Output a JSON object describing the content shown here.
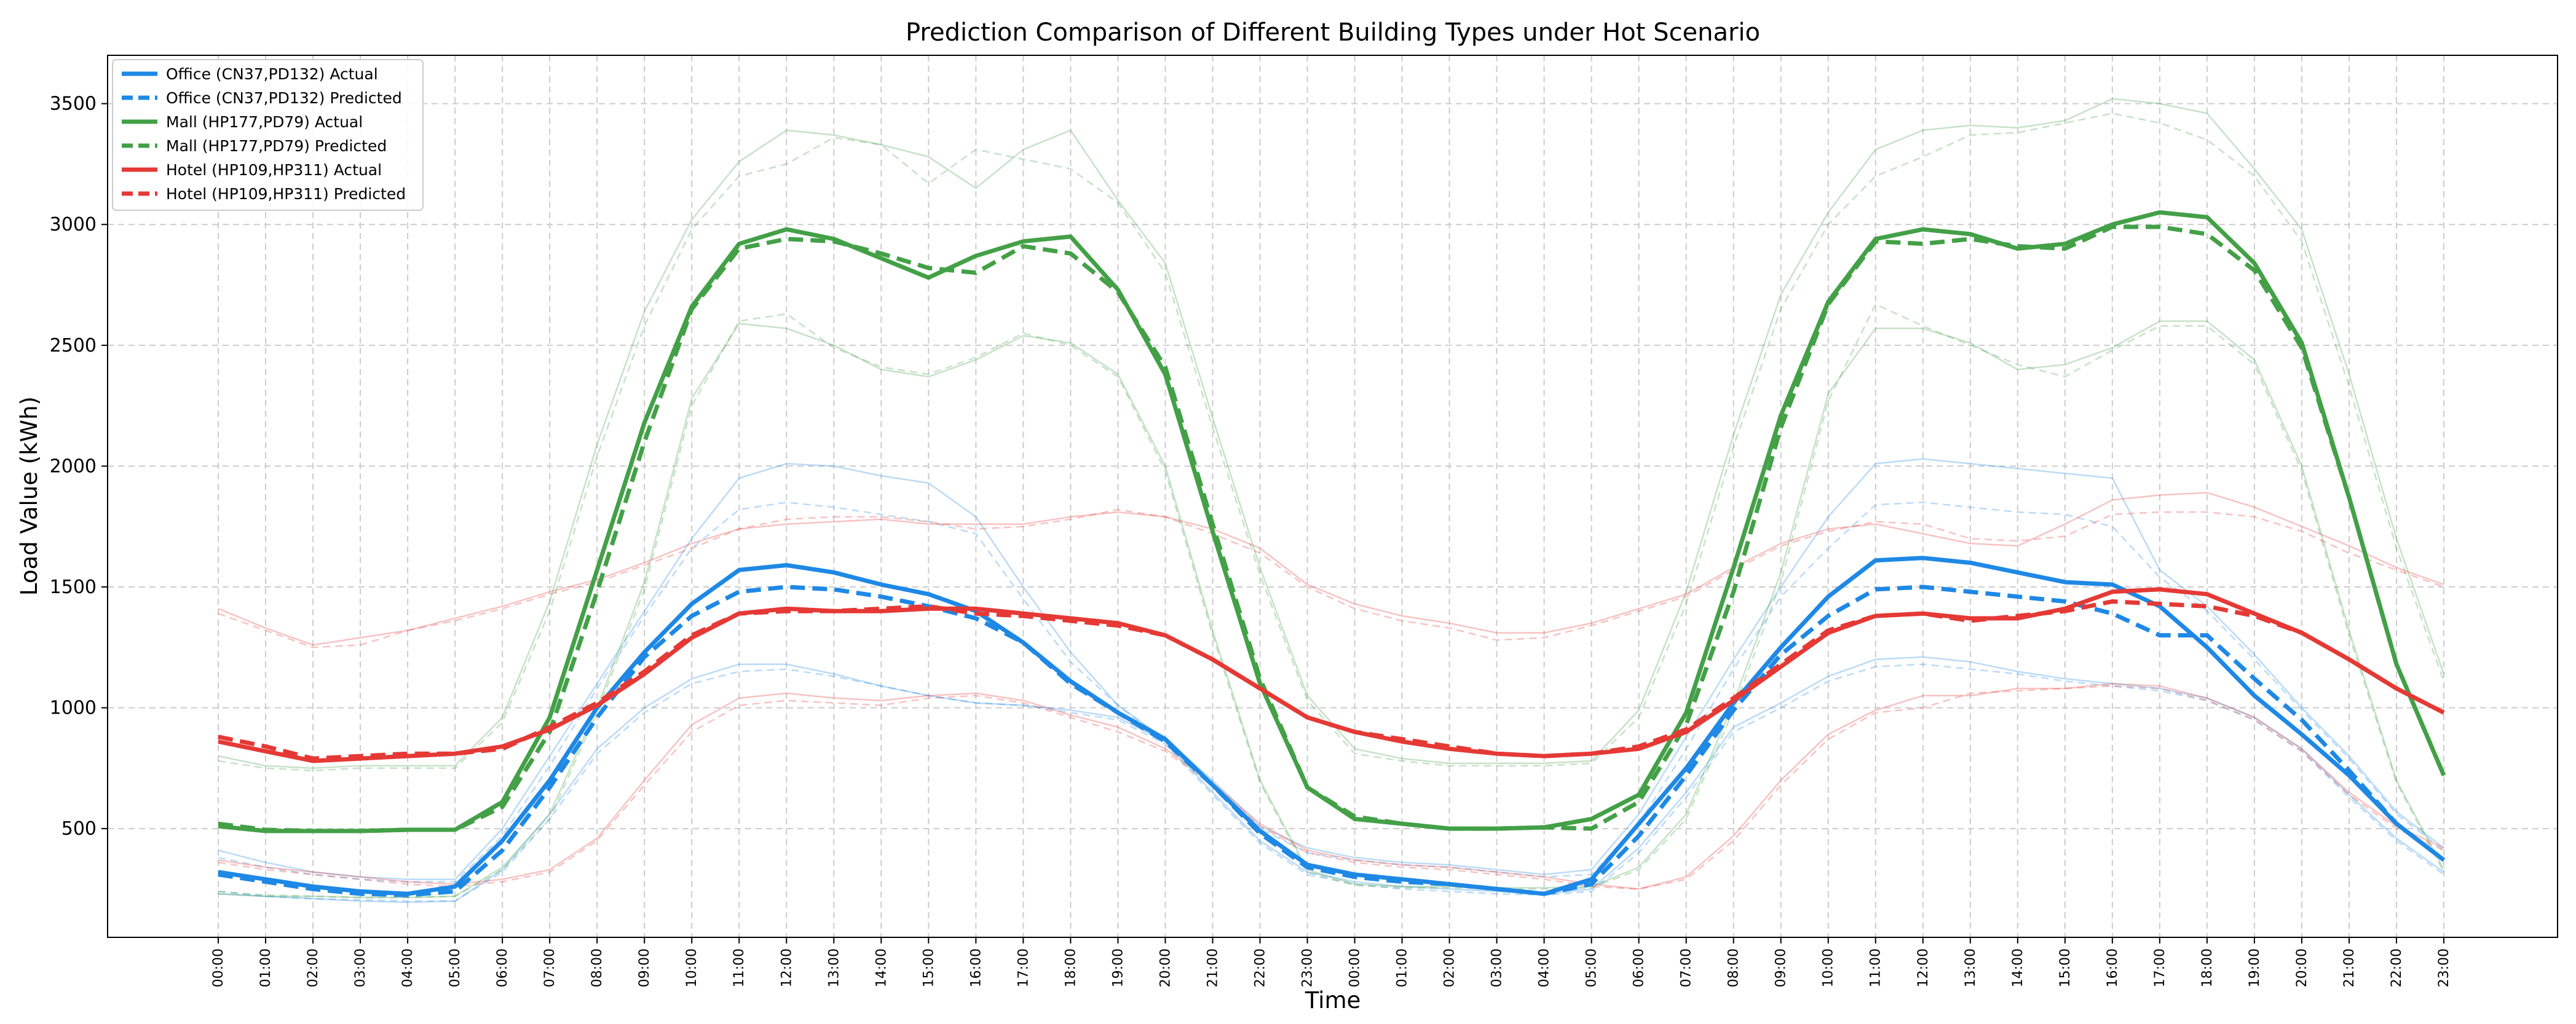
{
  "chart_data": {
    "type": "line",
    "title": "Prediction Comparison of Different Building Types under Hot Scenario",
    "xlabel": "Time",
    "ylabel": "Load Value (kWh)",
    "ylim": [
      50,
      3700
    ],
    "yticks": [
      500,
      1000,
      1500,
      2000,
      2500,
      3000,
      3500
    ],
    "grid": true,
    "legend_position": "top-left",
    "x": [
      "00:00",
      "01:00",
      "02:00",
      "03:00",
      "04:00",
      "05:00",
      "06:00",
      "07:00",
      "08:00",
      "09:00",
      "10:00",
      "11:00",
      "12:00",
      "13:00",
      "14:00",
      "15:00",
      "16:00",
      "17:00",
      "18:00",
      "19:00",
      "20:00",
      "21:00",
      "22:00",
      "23:00",
      "00:00",
      "01:00",
      "02:00",
      "03:00",
      "04:00",
      "05:00",
      "06:00",
      "07:00",
      "08:00",
      "09:00",
      "10:00",
      "11:00",
      "12:00",
      "13:00",
      "14:00",
      "15:00",
      "16:00",
      "17:00",
      "18:00",
      "19:00",
      "20:00",
      "21:00",
      "22:00",
      "23:00"
    ],
    "series": [
      {
        "name": "Office (CN37,PD132) Actual",
        "color": "#1e88e5",
        "style": "solid",
        "values": [
          320,
          290,
          260,
          240,
          230,
          260,
          450,
          700,
          1000,
          1230,
          1430,
          1570,
          1590,
          1560,
          1510,
          1470,
          1400,
          1270,
          1110,
          980,
          870,
          680,
          490,
          350,
          310,
          290,
          270,
          250,
          230,
          290,
          520,
          750,
          1020,
          1250,
          1460,
          1610,
          1620,
          1600,
          1560,
          1520,
          1510,
          1420,
          1250,
          1050,
          890,
          720,
          520,
          370
        ]
      },
      {
        "name": "Office (CN37,PD132) Predicted",
        "color": "#1e88e5",
        "style": "dashed",
        "values": [
          310,
          280,
          250,
          230,
          225,
          240,
          410,
          670,
          960,
          1210,
          1380,
          1480,
          1500,
          1490,
          1460,
          1420,
          1370,
          1270,
          1100,
          980,
          860,
          680,
          480,
          340,
          300,
          280,
          270,
          250,
          230,
          270,
          470,
          720,
          990,
          1220,
          1380,
          1490,
          1500,
          1480,
          1460,
          1440,
          1390,
          1300,
          1300,
          1120,
          950,
          740,
          520,
          370
        ]
      },
      {
        "name": "Mall (HP177,PD79) Actual",
        "color": "#43a047",
        "style": "solid",
        "values": [
          510,
          490,
          490,
          490,
          495,
          495,
          610,
          960,
          1570,
          2180,
          2660,
          2920,
          2980,
          2940,
          2860,
          2780,
          2870,
          2930,
          2950,
          2730,
          2380,
          1730,
          1100,
          670,
          540,
          520,
          500,
          500,
          505,
          540,
          640,
          980,
          1580,
          2210,
          2680,
          2940,
          2980,
          2960,
          2900,
          2920,
          3000,
          3050,
          3030,
          2840,
          2510,
          1870,
          1180,
          720
        ]
      },
      {
        "name": "Mall (HP177,PD79) Predicted",
        "color": "#43a047",
        "style": "dashed",
        "values": [
          520,
          495,
          490,
          490,
          495,
          495,
          590,
          900,
          1480,
          2100,
          2650,
          2900,
          2940,
          2930,
          2880,
          2820,
          2800,
          2910,
          2880,
          2720,
          2410,
          1760,
          1120,
          670,
          550,
          520,
          500,
          500,
          505,
          500,
          610,
          930,
          1480,
          2160,
          2670,
          2930,
          2920,
          2940,
          2910,
          2900,
          2990,
          2990,
          2960,
          2810,
          2490,
          1870,
          1180,
          720
        ]
      },
      {
        "name": "Hotel (HP109,HP311) Actual",
        "color": "#e53935",
        "style": "solid",
        "values": [
          860,
          820,
          780,
          790,
          800,
          810,
          840,
          910,
          1010,
          1140,
          1290,
          1390,
          1410,
          1400,
          1400,
          1410,
          1410,
          1390,
          1370,
          1350,
          1300,
          1200,
          1080,
          960,
          900,
          860,
          830,
          810,
          800,
          810,
          830,
          900,
          1030,
          1170,
          1310,
          1380,
          1390,
          1370,
          1370,
          1410,
          1480,
          1490,
          1470,
          1390,
          1310,
          1200,
          1080,
          980
        ]
      },
      {
        "name": "Hotel (HP109,HP311) Predicted",
        "color": "#e53935",
        "style": "dashed",
        "values": [
          880,
          840,
          790,
          800,
          810,
          810,
          830,
          920,
          1020,
          1150,
          1300,
          1390,
          1400,
          1400,
          1410,
          1420,
          1390,
          1380,
          1360,
          1340,
          1300,
          1200,
          1080,
          960,
          900,
          870,
          840,
          810,
          800,
          810,
          840,
          910,
          1040,
          1180,
          1320,
          1380,
          1390,
          1360,
          1380,
          1400,
          1440,
          1430,
          1420,
          1380,
          1310,
          1200,
          1080,
          980
        ]
      }
    ],
    "background_series": [
      {
        "color": "#1e88e5",
        "style": "solid",
        "values": [
          410,
          360,
          320,
          300,
          290,
          290,
          500,
          800,
          1100,
          1400,
          1700,
          1950,
          2010,
          2000,
          1960,
          1930,
          1790,
          1500,
          1230,
          1010,
          870,
          700,
          510,
          420,
          380,
          360,
          350,
          330,
          310,
          330,
          560,
          880,
          1200,
          1500,
          1790,
          2010,
          2030,
          2010,
          1990,
          1970,
          1950,
          1570,
          1420,
          1220,
          1000,
          800,
          570,
          420
        ]
      },
      {
        "color": "#1e88e5",
        "style": "dashed",
        "values": [
          380,
          340,
          310,
          290,
          280,
          280,
          470,
          760,
          1080,
          1380,
          1660,
          1820,
          1850,
          1830,
          1800,
          1770,
          1720,
          1450,
          1190,
          1010,
          860,
          690,
          500,
          400,
          370,
          350,
          340,
          320,
          300,
          310,
          520,
          830,
          1160,
          1460,
          1660,
          1840,
          1850,
          1830,
          1810,
          1800,
          1750,
          1540,
          1400,
          1200,
          990,
          790,
          560,
          410
        ]
      },
      {
        "color": "#1e88e5",
        "style": "solid",
        "values": [
          230,
          220,
          210,
          200,
          195,
          200,
          330,
          560,
          830,
          1000,
          1120,
          1180,
          1180,
          1140,
          1090,
          1050,
          1020,
          1010,
          990,
          960,
          860,
          650,
          450,
          320,
          280,
          260,
          250,
          240,
          230,
          250,
          420,
          650,
          920,
          1020,
          1130,
          1200,
          1210,
          1190,
          1150,
          1120,
          1100,
          1080,
          1040,
          960,
          830,
          640,
          460,
          320
        ]
      },
      {
        "color": "#1e88e5",
        "style": "dashed",
        "values": [
          240,
          220,
          210,
          205,
          200,
          200,
          320,
          540,
          810,
          980,
          1100,
          1150,
          1160,
          1130,
          1090,
          1050,
          1020,
          1010,
          980,
          950,
          850,
          640,
          440,
          310,
          270,
          250,
          240,
          230,
          225,
          240,
          400,
          630,
          900,
          1000,
          1110,
          1170,
          1180,
          1160,
          1140,
          1110,
          1090,
          1070,
          1030,
          950,
          820,
          630,
          450,
          310
        ]
      },
      {
        "color": "#43a047",
        "style": "solid",
        "values": [
          800,
          760,
          750,
          760,
          760,
          760,
          960,
          1440,
          2090,
          2640,
          3020,
          3260,
          3390,
          3370,
          3330,
          3280,
          3150,
          3310,
          3390,
          3100,
          2840,
          2200,
          1580,
          1050,
          830,
          790,
          770,
          770,
          770,
          780,
          990,
          1480,
          2130,
          2710,
          3050,
          3310,
          3390,
          3410,
          3400,
          3430,
          3520,
          3500,
          3460,
          3230,
          2980,
          2380,
          1700,
          1140
        ]
      },
      {
        "color": "#43a047",
        "style": "dashed",
        "values": [
          780,
          750,
          740,
          750,
          750,
          750,
          940,
          1400,
          2040,
          2580,
          2980,
          3200,
          3250,
          3360,
          3330,
          3170,
          3310,
          3270,
          3230,
          3090,
          2800,
          2160,
          1550,
          1030,
          810,
          780,
          760,
          760,
          760,
          770,
          960,
          1430,
          2080,
          2650,
          3000,
          3200,
          3280,
          3370,
          3380,
          3420,
          3460,
          3420,
          3350,
          3200,
          2930,
          2330,
          1660,
          1110
        ]
      },
      {
        "color": "#43a047",
        "style": "solid",
        "values": [
          230,
          220,
          220,
          215,
          215,
          220,
          340,
          560,
          1000,
          1520,
          2280,
          2590,
          2570,
          2500,
          2400,
          2370,
          2440,
          2540,
          2510,
          2380,
          2000,
          1320,
          700,
          330,
          270,
          260,
          260,
          255,
          255,
          260,
          340,
          560,
          1020,
          1560,
          2300,
          2570,
          2570,
          2510,
          2400,
          2420,
          2490,
          2600,
          2600,
          2440,
          2000,
          1320,
          700,
          330
        ]
      },
      {
        "color": "#43a047",
        "style": "dashed",
        "values": [
          240,
          225,
          220,
          215,
          215,
          220,
          330,
          540,
          980,
          1490,
          2250,
          2600,
          2630,
          2490,
          2410,
          2380,
          2450,
          2550,
          2500,
          2370,
          1980,
          1300,
          690,
          320,
          265,
          255,
          255,
          250,
          250,
          255,
          330,
          540,
          990,
          1520,
          2270,
          2670,
          2580,
          2500,
          2420,
          2370,
          2480,
          2580,
          2580,
          2420,
          1980,
          1300,
          690,
          320
        ]
      },
      {
        "color": "#e53935",
        "style": "solid",
        "values": [
          1410,
          1330,
          1260,
          1290,
          1320,
          1370,
          1420,
          1480,
          1530,
          1600,
          1680,
          1740,
          1760,
          1770,
          1780,
          1760,
          1760,
          1760,
          1790,
          1810,
          1790,
          1740,
          1660,
          1510,
          1430,
          1380,
          1350,
          1310,
          1310,
          1350,
          1410,
          1470,
          1580,
          1680,
          1740,
          1760,
          1720,
          1680,
          1670,
          1760,
          1860,
          1880,
          1890,
          1830,
          1750,
          1670,
          1580,
          1510
        ]
      },
      {
        "color": "#e53935",
        "style": "dashed",
        "values": [
          1390,
          1320,
          1250,
          1260,
          1320,
          1360,
          1410,
          1470,
          1520,
          1590,
          1660,
          1740,
          1780,
          1790,
          1790,
          1770,
          1740,
          1750,
          1780,
          1820,
          1790,
          1720,
          1640,
          1500,
          1410,
          1360,
          1330,
          1280,
          1290,
          1340,
          1400,
          1460,
          1570,
          1670,
          1730,
          1770,
          1760,
          1700,
          1690,
          1710,
          1800,
          1810,
          1810,
          1790,
          1730,
          1640,
          1570,
          1500
        ]
      },
      {
        "color": "#e53935",
        "style": "solid",
        "values": [
          370,
          340,
          320,
          300,
          280,
          270,
          290,
          330,
          460,
          700,
          930,
          1040,
          1060,
          1040,
          1030,
          1050,
          1060,
          1030,
          970,
          920,
          830,
          690,
          520,
          410,
          370,
          350,
          340,
          320,
          300,
          270,
          250,
          300,
          470,
          700,
          890,
          990,
          1050,
          1050,
          1080,
          1080,
          1100,
          1090,
          1040,
          960,
          830,
          650,
          510,
          420
        ]
      },
      {
        "color": "#e53935",
        "style": "dashed",
        "values": [
          360,
          330,
          310,
          290,
          270,
          260,
          280,
          320,
          450,
          680,
          900,
          1010,
          1030,
          1020,
          1010,
          1040,
          1050,
          1020,
          960,
          900,
          820,
          680,
          510,
          400,
          360,
          340,
          330,
          310,
          290,
          260,
          250,
          290,
          450,
          680,
          870,
          980,
          1000,
          1060,
          1070,
          1080,
          1090,
          1080,
          1030,
          950,
          820,
          640,
          500,
          410
        ]
      }
    ]
  }
}
